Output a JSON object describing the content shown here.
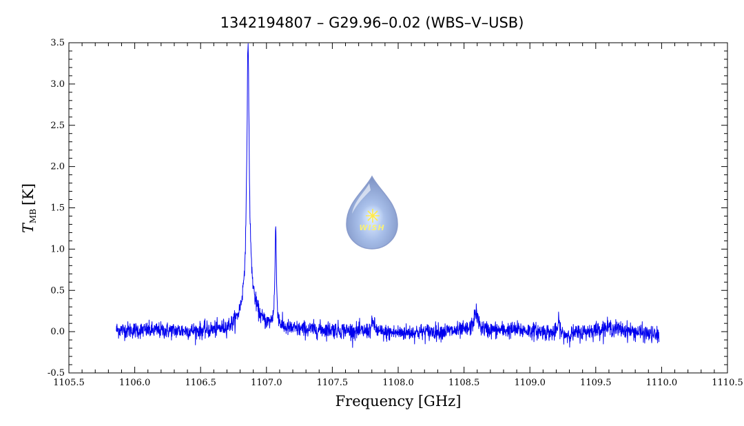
{
  "title": "1342194807 – G29.96–0.02 (WBS–V–USB)",
  "logo_label": "WISH",
  "colors": {
    "series": "#0000ee",
    "frame": "#000000",
    "logo": "#9fb3de"
  },
  "chart_data": {
    "type": "line",
    "xlabel": "Frequency [GHz]",
    "ylabel": {
      "symbol": "T",
      "subscript": "MB",
      "unit": "[K]"
    },
    "xlim": [
      1105.5,
      1110.5
    ],
    "ylim": [
      -0.5,
      3.5
    ],
    "x_ticks": [
      "1105.5",
      "1106.0",
      "1106.5",
      "1107.0",
      "1107.5",
      "1108.0",
      "1108.5",
      "1109.0",
      "1109.5",
      "1110.0",
      "1110.5"
    ],
    "y_ticks": [
      "-0.5",
      "0.0",
      "0.5",
      "1.0",
      "1.5",
      "2.0",
      "2.5",
      "3.0",
      "3.5"
    ],
    "grid": false,
    "series": [
      {
        "x_range": [
          1105.86,
          1109.98
        ],
        "noise_rms": 0.05,
        "baseline": [
          [
            1105.86,
            0.02
          ],
          [
            1106.5,
            0.0
          ],
          [
            1107.5,
            0.02
          ],
          [
            1107.9,
            -0.02
          ],
          [
            1108.3,
            0.0
          ],
          [
            1108.9,
            0.02
          ],
          [
            1109.1,
            0.0
          ],
          [
            1109.25,
            -0.05
          ],
          [
            1109.6,
            0.05
          ],
          [
            1109.98,
            -0.05
          ]
        ],
        "features": [
          {
            "center": 1106.86,
            "peak": 2.95,
            "width": 0.01
          },
          {
            "center": 1106.86,
            "peak": 0.45,
            "width": 0.045
          },
          {
            "center": 1106.89,
            "peak": 0.12,
            "width": 0.08
          },
          {
            "center": 1107.07,
            "peak": 1.1,
            "width": 0.006
          },
          {
            "center": 1107.07,
            "peak": 0.12,
            "width": 0.02
          },
          {
            "center": 1107.81,
            "peak": 0.12,
            "width": 0.015
          },
          {
            "center": 1108.59,
            "peak": 0.22,
            "width": 0.02
          },
          {
            "center": 1109.22,
            "peak": 0.15,
            "width": 0.012
          }
        ]
      }
    ]
  }
}
